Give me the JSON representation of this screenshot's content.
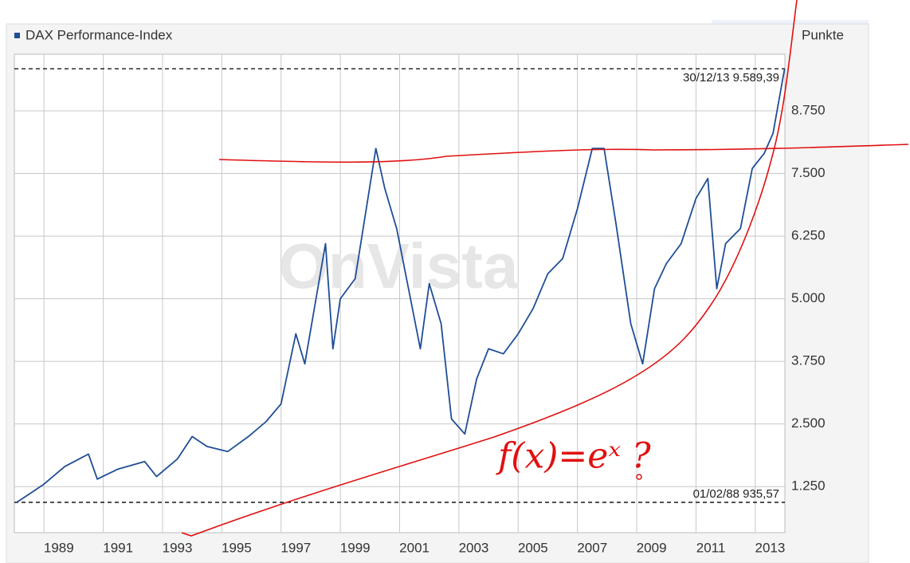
{
  "chart_data": {
    "type": "line",
    "y_label": "Punkte",
    "watermark": "OnVista",
    "x": [
      1988.08,
      1988.5,
      1989.0,
      1989.7,
      1990.5,
      1990.8,
      1991.5,
      1992.4,
      1992.8,
      1993.5,
      1994.0,
      1994.5,
      1995.2,
      1995.9,
      1996.5,
      1997.0,
      1997.5,
      1997.8,
      1998.5,
      1998.75,
      1999.0,
      1999.5,
      2000.2,
      2000.5,
      2000.9,
      2001.7,
      2002.0,
      2002.4,
      2002.75,
      2003.2,
      2003.6,
      2004.0,
      2004.5,
      2005.0,
      2005.5,
      2006.0,
      2006.5,
      2007.0,
      2007.5,
      2007.9,
      2008.3,
      2008.8,
      2009.2,
      2009.6,
      2010.0,
      2010.5,
      2011.0,
      2011.4,
      2011.7,
      2012.0,
      2012.5,
      2012.9,
      2013.3,
      2013.6,
      2013.99
    ],
    "series": [
      {
        "name": "DAX Performance-Index",
        "color": "#1f4e96",
        "values": [
          936,
          1100,
          1300,
          1650,
          1900,
          1400,
          1600,
          1750,
          1450,
          1800,
          2250,
          2050,
          1950,
          2250,
          2550,
          2900,
          4300,
          3700,
          6100,
          4000,
          5000,
          5400,
          8000,
          7200,
          6400,
          4000,
          5300,
          4500,
          2600,
          2300,
          3400,
          4000,
          3900,
          4300,
          4800,
          5500,
          5800,
          6800,
          8000,
          8000,
          6500,
          4500,
          3700,
          5200,
          5700,
          6100,
          7000,
          7400,
          5200,
          6100,
          6400,
          7600,
          7900,
          8300,
          9589
        ]
      }
    ],
    "xlim": [
      1988,
      2014
    ],
    "xticks": [
      1989,
      1991,
      1993,
      1995,
      1997,
      1999,
      2001,
      2003,
      2005,
      2007,
      2009,
      2011,
      2013
    ],
    "ylim": [
      330,
      9880
    ],
    "yticks": [
      {
        "value": 1250,
        "label": "1.250"
      },
      {
        "value": 2500,
        "label": "2.500"
      },
      {
        "value": 3750,
        "label": "3.750"
      },
      {
        "value": 5000,
        "label": "5.000"
      },
      {
        "value": 6250,
        "label": "6.250"
      },
      {
        "value": 7500,
        "label": "7.500"
      },
      {
        "value": 8750,
        "label": "8.750"
      }
    ],
    "grid": true,
    "reference_lines": [
      {
        "value": 9589.39,
        "label": "30/12/13  9.589,39"
      },
      {
        "value": 935.57,
        "label": "01/02/88  935,57"
      }
    ],
    "annotations": [
      "f(x)=eˣ ?"
    ]
  }
}
